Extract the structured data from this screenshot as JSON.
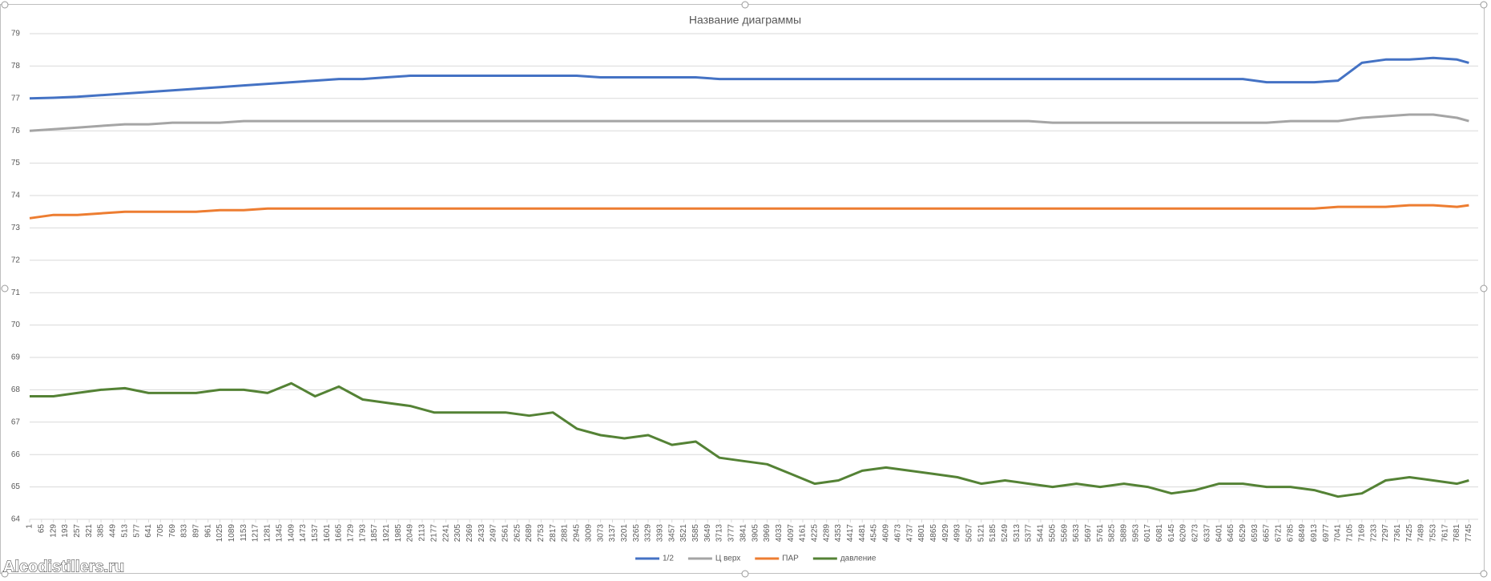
{
  "chart_data": {
    "type": "line",
    "title": "Название диаграммы",
    "watermark": "Alcodistillers.ru",
    "x": [
      1,
      129,
      257,
      385,
      513,
      641,
      769,
      897,
      1025,
      1153,
      1281,
      1409,
      1537,
      1665,
      1793,
      1921,
      2049,
      2177,
      2305,
      2433,
      2561,
      2689,
      2817,
      2945,
      3073,
      3201,
      3329,
      3457,
      3585,
      3713,
      3841,
      3969,
      4097,
      4225,
      4353,
      4481,
      4609,
      4737,
      4865,
      4993,
      5121,
      5249,
      5377,
      5505,
      5633,
      5761,
      5889,
      6017,
      6145,
      6273,
      6401,
      6529,
      6657,
      6785,
      6913,
      7041,
      7169,
      7297,
      7425,
      7553,
      7681,
      7745
    ],
    "xlim": [
      1,
      7795
    ],
    "xticks": [
      1,
      65,
      129,
      193,
      257,
      321,
      385,
      449,
      513,
      577,
      641,
      705,
      769,
      833,
      897,
      961,
      1025,
      1089,
      1153,
      1217,
      1281,
      1345,
      1409,
      1473,
      1537,
      1601,
      1665,
      1729,
      1793,
      1857,
      1921,
      1985,
      2049,
      2113,
      2177,
      2241,
      2305,
      2369,
      2433,
      2497,
      2561,
      2625,
      2689,
      2753,
      2817,
      2881,
      2945,
      3009,
      3073,
      3137,
      3201,
      3265,
      3329,
      3393,
      3457,
      3521,
      3585,
      3649,
      3713,
      3777,
      3841,
      3905,
      3969,
      4033,
      4097,
      4161,
      4225,
      4289,
      4353,
      4417,
      4481,
      4545,
      4609,
      4673,
      4737,
      4801,
      4865,
      4929,
      4993,
      5057,
      5121,
      5185,
      5249,
      5313,
      5377,
      5441,
      5505,
      5569,
      5633,
      5697,
      5761,
      5825,
      5889,
      5953,
      6017,
      6081,
      6145,
      6209,
      6273,
      6337,
      6401,
      6465,
      6529,
      6593,
      6657,
      6721,
      6785,
      6849,
      6913,
      6977,
      7041,
      7105,
      7169,
      7233,
      7297,
      7361,
      7425,
      7489,
      7553,
      7617,
      7681,
      7745
    ],
    "ylim": [
      64,
      79
    ],
    "yticks": [
      64,
      65,
      66,
      67,
      68,
      69,
      70,
      71,
      72,
      73,
      74,
      75,
      76,
      77,
      78,
      79
    ],
    "grid": true,
    "legend": "bottom",
    "series": [
      {
        "name": "1/2",
        "color": "#4472c4",
        "values": [
          77.0,
          77.02,
          77.05,
          77.1,
          77.15,
          77.2,
          77.25,
          77.3,
          77.35,
          77.4,
          77.45,
          77.5,
          77.55,
          77.6,
          77.6,
          77.65,
          77.7,
          77.7,
          77.7,
          77.7,
          77.7,
          77.7,
          77.7,
          77.7,
          77.65,
          77.65,
          77.65,
          77.65,
          77.65,
          77.6,
          77.6,
          77.6,
          77.6,
          77.6,
          77.6,
          77.6,
          77.6,
          77.6,
          77.6,
          77.6,
          77.6,
          77.6,
          77.6,
          77.6,
          77.6,
          77.6,
          77.6,
          77.6,
          77.6,
          77.6,
          77.6,
          77.6,
          77.5,
          77.5,
          77.5,
          77.55,
          78.1,
          78.2,
          78.2,
          78.25,
          78.2,
          78.1
        ]
      },
      {
        "name": "Ц верх",
        "color": "#a5a5a5",
        "values": [
          76.0,
          76.05,
          76.1,
          76.15,
          76.2,
          76.2,
          76.25,
          76.25,
          76.25,
          76.3,
          76.3,
          76.3,
          76.3,
          76.3,
          76.3,
          76.3,
          76.3,
          76.3,
          76.3,
          76.3,
          76.3,
          76.3,
          76.3,
          76.3,
          76.3,
          76.3,
          76.3,
          76.3,
          76.3,
          76.3,
          76.3,
          76.3,
          76.3,
          76.3,
          76.3,
          76.3,
          76.3,
          76.3,
          76.3,
          76.3,
          76.3,
          76.3,
          76.3,
          76.25,
          76.25,
          76.25,
          76.25,
          76.25,
          76.25,
          76.25,
          76.25,
          76.25,
          76.25,
          76.3,
          76.3,
          76.3,
          76.4,
          76.45,
          76.5,
          76.5,
          76.4,
          76.3
        ]
      },
      {
        "name": "ПАР",
        "color": "#ed7d31",
        "values": [
          73.3,
          73.4,
          73.4,
          73.45,
          73.5,
          73.5,
          73.5,
          73.5,
          73.55,
          73.55,
          73.6,
          73.6,
          73.6,
          73.6,
          73.6,
          73.6,
          73.6,
          73.6,
          73.6,
          73.6,
          73.6,
          73.6,
          73.6,
          73.6,
          73.6,
          73.6,
          73.6,
          73.6,
          73.6,
          73.6,
          73.6,
          73.6,
          73.6,
          73.6,
          73.6,
          73.6,
          73.6,
          73.6,
          73.6,
          73.6,
          73.6,
          73.6,
          73.6,
          73.6,
          73.6,
          73.6,
          73.6,
          73.6,
          73.6,
          73.6,
          73.6,
          73.6,
          73.6,
          73.6,
          73.6,
          73.65,
          73.65,
          73.65,
          73.7,
          73.7,
          73.65,
          73.7
        ]
      },
      {
        "name": "давление",
        "color": "#548235",
        "values": [
          67.8,
          67.8,
          67.9,
          68.0,
          68.05,
          67.9,
          67.9,
          67.9,
          68.0,
          68.0,
          67.9,
          68.2,
          67.8,
          68.1,
          67.7,
          67.6,
          67.5,
          67.3,
          67.3,
          67.3,
          67.3,
          67.2,
          67.3,
          66.8,
          66.6,
          66.5,
          66.6,
          66.3,
          66.4,
          65.9,
          65.8,
          65.7,
          65.4,
          65.1,
          65.2,
          65.5,
          65.6,
          65.5,
          65.4,
          65.3,
          65.1,
          65.2,
          65.1,
          65.0,
          65.1,
          65.0,
          65.1,
          65.0,
          64.8,
          64.9,
          65.1,
          65.1,
          65.0,
          65.0,
          64.9,
          64.7,
          64.8,
          65.2,
          65.3,
          65.2,
          65.1,
          65.2
        ]
      }
    ]
  }
}
